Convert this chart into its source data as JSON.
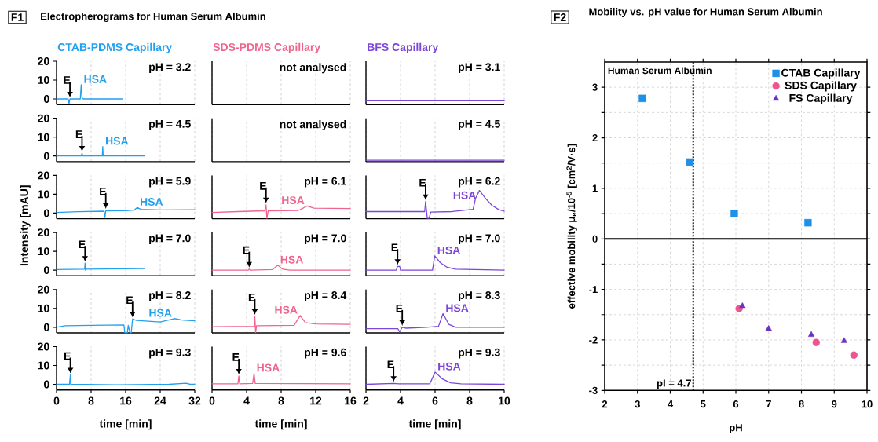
{
  "chart_data": [
    {
      "type": "scatter",
      "title": "Mobility vs. pH value for Human Serum Albumin",
      "xlabel": "pH",
      "ylabel": "effective mobility μ$_{e}$/10$^{-5}$ [cm$^{2}$/V·s]",
      "annotations": [
        "F2",
        "Human Serum Albumin"
      ],
      "series": [
        {
          "name": "CTAB Capillary",
          "color": "#1e90e8",
          "marker": "square",
          "x": [
            3.15,
            4.6,
            5.95,
            8.2
          ],
          "values": [
            2.78,
            1.52,
            0.5,
            0.32
          ]
        },
        {
          "name": "SDS Capillary",
          "color": "#ee5590",
          "marker": "circle",
          "x": [
            6.1,
            8.45,
            9.6
          ],
          "values": [
            -1.38,
            -2.05,
            -2.3
          ]
        },
        {
          "name": "FS Capillary",
          "color": "#6a30c8",
          "marker": "triangle",
          "x": [
            6.2,
            7,
            8.3,
            9.3
          ],
          "values": [
            -1.33,
            -1.78,
            -1.9,
            -2.02
          ]
        }
      ],
      "ref_lines": [
        {
          "axis": "x",
          "value": 4.7,
          "label": "pI = 4.7",
          "line_style": "dotted"
        },
        {
          "axis": "y",
          "value": 0,
          "line_style": "solid"
        }
      ],
      "xlim": [
        2,
        10
      ],
      "xticks": [
        2,
        3,
        4,
        5,
        6,
        7,
        8,
        9,
        10
      ],
      "ylim": [
        -3,
        3.5
      ],
      "yticks": [
        -3,
        {
          "value": -2.5,
          "label": null
        },
        -2,
        {
          "value": -1.5,
          "label": null
        },
        -1,
        {
          "value": -0.5,
          "label": null
        },
        0,
        {
          "value": 0.5,
          "label": null
        },
        1,
        {
          "value": 1.5,
          "label": null
        },
        2,
        {
          "value": 2.5,
          "label": null
        },
        3
      ],
      "grid": true,
      "legend": "top right"
    },
    {
      "type": "line",
      "title": "CTAB-PDMS Capillary",
      "color": "#22a0ee",
      "x": [
        0,
        2.7,
        2.9,
        3.1,
        5.5,
        5.7,
        5.9,
        6.2,
        15.2
      ],
      "values": [
        0,
        0,
        -2.6,
        0,
        0,
        7.5,
        0.5,
        0,
        0
      ],
      "annotations": [
        "pH = 3.2",
        "F1",
        "Electropherograms for Human Serum Albumin",
        {
          "text": "E",
          "x": 3.1,
          "y": 0
        },
        {
          "text": "HSA",
          "x": 5.7,
          "y": 7.5
        }
      ],
      "xlim": [
        0,
        32
      ],
      "xticks": [
        0,
        8,
        16,
        24,
        32
      ],
      "ylim": [
        -3,
        20
      ],
      "yticks": [
        0,
        10,
        20
      ],
      "grid": "x",
      "tick_labels": "y"
    },
    {
      "type": "line",
      "title": "SDS-PDMS Capillary",
      "color": "#f0648e",
      "annotations": [
        "not analysed"
      ],
      "xlim": [
        0,
        16
      ],
      "xticks": [
        0,
        4,
        8,
        12,
        16
      ],
      "ylim": [
        -3,
        20
      ],
      "yticks": [
        0,
        10,
        20
      ],
      "grid": "x",
      "tick_labels": false
    },
    {
      "type": "line",
      "title": "BFS Capillary",
      "color": "#7d45d8",
      "x": [
        2,
        10
      ],
      "values": [
        -1,
        -1
      ],
      "annotations": [
        "pH = 3.1"
      ],
      "xlim": [
        2,
        10
      ],
      "xticks": [
        2,
        4,
        6,
        8,
        10
      ],
      "ylim": [
        -3,
        20
      ],
      "yticks": [
        0,
        10,
        20
      ],
      "grid": "x",
      "tick_labels": false
    },
    {
      "type": "line",
      "color": "#22a0ee",
      "x": [
        0,
        5.7,
        5.9,
        6.1,
        10.6,
        10.7,
        10.8,
        20.3
      ],
      "values": [
        0,
        0,
        1.5,
        0,
        0,
        5,
        0,
        0
      ],
      "annotations": [
        "pH = 4.5",
        {
          "text": "E",
          "x": 5.9,
          "y": 1.5
        },
        {
          "text": "HSA",
          "x": 10.7,
          "y": 5
        }
      ],
      "xlim": [
        0,
        32
      ],
      "xticks": [
        0,
        8,
        16,
        24,
        32
      ],
      "ylim": [
        -3,
        20
      ],
      "yticks": [
        0,
        10,
        20
      ],
      "grid": "x",
      "tick_labels": "y"
    },
    {
      "type": "line",
      "annotations": [
        "not analysed"
      ],
      "xlim": [
        0,
        16
      ],
      "xticks": [
        0,
        4,
        8,
        12,
        16
      ],
      "ylim": [
        -3,
        20
      ],
      "yticks": [
        0,
        10,
        20
      ],
      "grid": "x",
      "tick_labels": false
    },
    {
      "type": "line",
      "color": "#7d45d8",
      "x": [
        2,
        10
      ],
      "values": [
        -2.3,
        -2.3
      ],
      "annotations": [
        "pH = 4.5"
      ],
      "xlim": [
        2,
        10
      ],
      "xticks": [
        2,
        4,
        6,
        8,
        10
      ],
      "ylim": [
        -3,
        20
      ],
      "yticks": [
        0,
        10,
        20
      ],
      "grid": "x",
      "tick_labels": false
    },
    {
      "type": "line",
      "color": "#22a0ee",
      "x": [
        0,
        5,
        11,
        11.2,
        11.4,
        11.6,
        16,
        18,
        18.7,
        19.5,
        24,
        32
      ],
      "values": [
        0.3,
        0.7,
        1,
        -2.4,
        1.5,
        1.2,
        1.3,
        1.6,
        3,
        2,
        1.7,
        1.8
      ],
      "annotations": [
        "pH = 5.9",
        {
          "text": "E",
          "x": 11.4,
          "y": 1.5
        },
        {
          "text": "HSA",
          "x": 18.7,
          "y": 3
        }
      ],
      "xlim": [
        0,
        32
      ],
      "xticks": [
        0,
        8,
        16,
        24,
        32
      ],
      "ylim": [
        -3,
        20
      ],
      "yticks": [
        0,
        10,
        20
      ],
      "grid": "x",
      "tick_labels": "y"
    },
    {
      "type": "line",
      "color": "#f0648e",
      "x": [
        0,
        3,
        6.1,
        6.25,
        6.35,
        6.5,
        10,
        10.5,
        11,
        11.8,
        16
      ],
      "values": [
        0.3,
        0.8,
        1.2,
        4.4,
        -2.8,
        1.2,
        1.4,
        2.5,
        3.8,
        2.6,
        2.4
      ],
      "annotations": [
        "pH = 6.1",
        {
          "text": "E",
          "x": 6.25,
          "y": 4.4
        },
        {
          "text": "HSA",
          "x": 11,
          "y": 3.8
        }
      ],
      "xlim": [
        0,
        16
      ],
      "xticks": [
        0,
        4,
        8,
        12,
        16
      ],
      "ylim": [
        -3,
        20
      ],
      "yticks": [
        0,
        10,
        20
      ],
      "grid": "x",
      "tick_labels": false
    },
    {
      "type": "line",
      "color": "#7d45d8",
      "x": [
        2,
        5.4,
        5.45,
        5.55,
        5.65,
        5.75,
        7,
        8.2,
        8.35,
        8.57,
        8.9,
        9.3,
        9.7,
        10
      ],
      "values": [
        0.8,
        0.8,
        6.1,
        -2.8,
        -2.8,
        0.5,
        0.8,
        2,
        8,
        12,
        8,
        4,
        1.8,
        1
      ],
      "annotations": [
        "pH = 6.2",
        {
          "text": "E",
          "x": 5.45,
          "y": 6.1
        },
        {
          "text": "HSA",
          "x": 8.57,
          "y": 12
        }
      ],
      "xlim": [
        2,
        10
      ],
      "xticks": [
        2,
        4,
        6,
        8,
        10
      ],
      "ylim": [
        -3,
        20
      ],
      "yticks": [
        0,
        10,
        20
      ],
      "grid": "x",
      "tick_labels": false
    },
    {
      "type": "line",
      "color": "#22a0ee",
      "ylabel": "Intensity [mAU]",
      "x": [
        0,
        6.5,
        6.6,
        6.7,
        6.8,
        20.3
      ],
      "values": [
        0.3,
        0.5,
        3.7,
        0,
        0.5,
        0.8
      ],
      "annotations": [
        "pH = 7.0",
        {
          "text": "E",
          "x": 6.6,
          "y": 3.7
        }
      ],
      "xlim": [
        0,
        32
      ],
      "xticks": [
        0,
        8,
        16,
        24,
        32
      ],
      "ylim": [
        -3,
        20
      ],
      "yticks": [
        0,
        10,
        20
      ],
      "grid": "x",
      "tick_labels": "y"
    },
    {
      "type": "line",
      "color": "#f0648e",
      "x": [
        0,
        4.2,
        4.3,
        4.4,
        7,
        7.6,
        8.2,
        9,
        16
      ],
      "values": [
        0,
        0,
        0.6,
        0,
        0.3,
        2.6,
        0.5,
        0,
        0
      ],
      "annotations": [
        "pH = 7.0",
        {
          "text": "E",
          "x": 4.3,
          "y": 0.6
        },
        {
          "text": "HSA",
          "x": 7.6,
          "y": 2.6
        }
      ],
      "xlim": [
        0,
        16
      ],
      "xticks": [
        0,
        4,
        8,
        12,
        16
      ],
      "ylim": [
        -3,
        20
      ],
      "yticks": [
        0,
        10,
        20
      ],
      "grid": "x",
      "tick_labels": false
    },
    {
      "type": "line",
      "color": "#7d45d8",
      "x": [
        2,
        3.75,
        3.83,
        3.95,
        4,
        5.85,
        5.98,
        6.3,
        6.7,
        7.2,
        10
      ],
      "values": [
        0,
        0,
        2,
        2,
        0,
        0,
        7.6,
        4,
        1.5,
        0.5,
        0
      ],
      "annotations": [
        "pH = 7.0",
        {
          "text": "E",
          "x": 3.83,
          "y": 2
        },
        {
          "text": "HSA",
          "x": 5.98,
          "y": 7.6
        }
      ],
      "xlim": [
        2,
        10
      ],
      "xticks": [
        2,
        4,
        6,
        8,
        10
      ],
      "ylim": [
        -3,
        20
      ],
      "yticks": [
        0,
        10,
        20
      ],
      "grid": "x",
      "tick_labels": false
    },
    {
      "type": "line",
      "color": "#22a0ee",
      "x": [
        0,
        2,
        8,
        15.6,
        15.8,
        16.4,
        16.6,
        17,
        17.3,
        17.6,
        18.5,
        24,
        27.3,
        29,
        32
      ],
      "values": [
        0,
        0.8,
        1,
        1.2,
        -2.9,
        -2.9,
        1,
        -2.9,
        -2.9,
        4.4,
        3.6,
        2.8,
        4.6,
        3.8,
        3.4
      ],
      "annotations": [
        "pH = 8.2",
        {
          "text": "E",
          "x": 17.6,
          "y": 4.4
        },
        {
          "text": "HSA",
          "x": 27.3,
          "y": 4.6
        }
      ],
      "xlim": [
        0,
        32
      ],
      "xticks": [
        0,
        8,
        16,
        24,
        32
      ],
      "ylim": [
        -3,
        20
      ],
      "yticks": [
        0,
        10,
        20
      ],
      "grid": "x",
      "tick_labels": "y"
    },
    {
      "type": "line",
      "color": "#f0648e",
      "x": [
        0,
        4.9,
        4.95,
        5.05,
        5.15,
        9.5,
        10.2,
        10.8,
        12,
        16
      ],
      "values": [
        0.3,
        0.5,
        5.8,
        -2.8,
        0.8,
        1,
        6.2,
        2.5,
        1.7,
        1.5
      ],
      "annotations": [
        "pH = 8.4",
        {
          "text": "E",
          "x": 4.95,
          "y": 5.8
        },
        {
          "text": "HSA",
          "x": 10.2,
          "y": 6.2
        }
      ],
      "xlim": [
        0,
        16
      ],
      "xticks": [
        0,
        4,
        8,
        12,
        16
      ],
      "ylim": [
        -3,
        20
      ],
      "yticks": [
        0,
        10,
        20
      ],
      "grid": "x",
      "tick_labels": false
    },
    {
      "type": "line",
      "color": "#7d45d8",
      "x": [
        2,
        3.85,
        3.95,
        4.1,
        4.3,
        5.5,
        6.2,
        6.46,
        6.8,
        7.2,
        10
      ],
      "values": [
        -0.8,
        -0.8,
        -2.5,
        0,
        -0.5,
        0,
        0.5,
        7.2,
        1.5,
        0,
        0
      ],
      "annotations": [
        "pH = 8.3",
        {
          "text": "E",
          "x": 4.1,
          "y": 0
        },
        {
          "text": "HSA",
          "x": 6.46,
          "y": 7.2
        }
      ],
      "xlim": [
        2,
        10
      ],
      "xticks": [
        2,
        4,
        6,
        8,
        10
      ],
      "ylim": [
        -3,
        20
      ],
      "yticks": [
        0,
        10,
        20
      ],
      "grid": "x",
      "tick_labels": false
    },
    {
      "type": "line",
      "color": "#22a0ee",
      "xlabel": "time [min]",
      "x": [
        0,
        3,
        3.2,
        3.3,
        14,
        26,
        30,
        31,
        32
      ],
      "values": [
        0,
        0,
        5,
        0,
        -0.3,
        0,
        0.6,
        0,
        0
      ],
      "annotations": [
        "pH = 9.3",
        {
          "text": "E",
          "x": 3.2,
          "y": 5
        }
      ],
      "xlim": [
        0,
        32
      ],
      "xticks": [
        0,
        8,
        16,
        24,
        32
      ],
      "ylim": [
        -3,
        20
      ],
      "yticks": [
        0,
        10,
        20
      ],
      "grid": "x"
    },
    {
      "type": "line",
      "color": "#f0648e",
      "xlabel": "time [min]",
      "x": [
        0,
        3,
        3.1,
        3.2,
        4.7,
        4.86,
        5,
        16
      ],
      "values": [
        0.3,
        0.3,
        4.4,
        0.3,
        0.5,
        5.8,
        0.5,
        0.3
      ],
      "annotations": [
        "pH = 9.6",
        {
          "text": "E",
          "x": 3.1,
          "y": 4.4
        },
        {
          "text": "HSA",
          "x": 4.86,
          "y": 5.8
        }
      ],
      "xlim": [
        0,
        16
      ],
      "xticks": [
        0,
        4,
        8,
        12,
        16
      ],
      "ylim": [
        -3,
        20
      ],
      "yticks": [
        0,
        10,
        20
      ],
      "grid": "x",
      "tick_labels": "x"
    },
    {
      "type": "line",
      "color": "#7d45d8",
      "xlabel": "time [min]",
      "x": [
        2,
        3.6,
        3.9,
        5.7,
        6,
        6.4,
        6.9,
        7.5,
        10
      ],
      "values": [
        0,
        0.5,
        0.3,
        0.3,
        6.5,
        3,
        0.8,
        0.3,
        0
      ],
      "annotations": [
        "pH = 9.3",
        {
          "text": "E",
          "x": 3.6,
          "y": 0.5
        },
        {
          "text": "HSA",
          "x": 6,
          "y": 6.5
        }
      ],
      "xlim": [
        2,
        10
      ],
      "xticks": [
        2,
        4,
        6,
        8,
        10
      ],
      "ylim": [
        -3,
        20
      ],
      "yticks": [
        0,
        10,
        20
      ],
      "grid": "x",
      "tick_labels": "x"
    }
  ]
}
